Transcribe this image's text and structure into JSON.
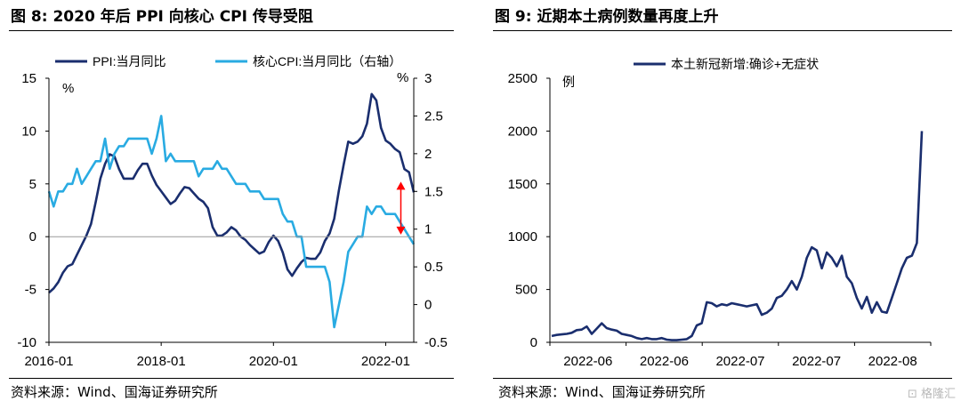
{
  "figures": [
    {
      "title": "图 8:  2020 年后 PPI 向核心 CPI 传导受阻",
      "source": "资料来源：Wind、国海证券研究所"
    },
    {
      "title": "图 9:  近期本土病例数量再度上升",
      "source": "资料来源：Wind、国海证券研究所"
    }
  ],
  "watermark": "格隆汇",
  "chart_data": [
    {
      "type": "line",
      "title": "",
      "y_unit_left": "%",
      "y_unit_right": "%",
      "ylim_left": [
        -10,
        15
      ],
      "ylim_right": [
        -0.5,
        3
      ],
      "yticks_left": [
        "15",
        "10",
        "5",
        "0",
        "-5",
        "-10"
      ],
      "yticks_right": [
        "3",
        "2.5",
        "2",
        "1.5",
        "1",
        "0.5",
        "0",
        "-0.5"
      ],
      "x_start": "2016-01",
      "x_end": "2022-06",
      "xticks": [
        "2016-01",
        "2018-01",
        "2020-01",
        "2022-01"
      ],
      "legend_position": "top",
      "series": [
        {
          "name": "PPI:当月同比",
          "axis": "left",
          "color": "#1a2e6e",
          "values": [
            -5.3,
            -4.9,
            -4.3,
            -3.4,
            -2.8,
            -2.6,
            -1.7,
            -0.8,
            0.1,
            1.2,
            3.3,
            5.5,
            6.9,
            7.8,
            7.6,
            6.4,
            5.5,
            5.5,
            5.5,
            6.3,
            6.9,
            6.9,
            5.8,
            4.9,
            4.3,
            3.7,
            3.1,
            3.4,
            4.1,
            4.7,
            4.6,
            4.1,
            3.6,
            3.3,
            2.7,
            0.9,
            0.1,
            0.1,
            0.4,
            0.9,
            0.6,
            0.0,
            -0.3,
            -0.8,
            -1.2,
            -1.6,
            -1.4,
            -0.5,
            0.1,
            -0.4,
            -1.5,
            -3.1,
            -3.7,
            -3.0,
            -2.4,
            -2.0,
            -2.1,
            -2.1,
            -1.5,
            -0.4,
            0.3,
            1.7,
            4.4,
            6.8,
            9.0,
            8.8,
            9.0,
            9.5,
            10.7,
            13.5,
            12.9,
            10.3,
            9.1,
            8.8,
            8.3,
            8.0,
            6.4,
            6.1,
            4.2
          ]
        },
        {
          "name": "核心CPI:当月同比（右轴）",
          "axis": "right",
          "color": "#29abe2",
          "values": [
            1.5,
            1.3,
            1.5,
            1.5,
            1.6,
            1.6,
            1.8,
            1.6,
            1.7,
            1.8,
            1.9,
            1.9,
            2.2,
            1.8,
            2.0,
            2.1,
            2.1,
            2.2,
            2.2,
            2.2,
            2.2,
            2.2,
            2.0,
            2.2,
            2.5,
            1.9,
            2.0,
            1.9,
            1.9,
            1.9,
            1.9,
            1.9,
            1.7,
            1.8,
            1.8,
            1.8,
            1.9,
            1.8,
            1.8,
            1.7,
            1.6,
            1.6,
            1.6,
            1.5,
            1.5,
            1.5,
            1.4,
            1.4,
            1.4,
            1.4,
            1.2,
            1.1,
            1.1,
            0.9,
            0.9,
            0.5,
            0.5,
            0.5,
            0.5,
            0.5,
            0.3,
            -0.3,
            0.0,
            0.3,
            0.7,
            0.8,
            0.9,
            0.9,
            1.3,
            1.2,
            1.3,
            1.3,
            1.2,
            1.2,
            1.2,
            1.1,
            1.0,
            0.9,
            0.8
          ]
        }
      ],
      "annotations": [
        {
          "type": "double-arrow",
          "color": "#ff0000",
          "x": "2022-05",
          "y_from": 5.2,
          "y_to": 0.2
        }
      ]
    },
    {
      "type": "line",
      "title": "",
      "y_unit": "例",
      "ylim": [
        0,
        2500
      ],
      "yticks": [
        "2500",
        "2000",
        "1500",
        "1000",
        "500",
        "0"
      ],
      "xticks": [
        "2022-06",
        "2022-06",
        "2022-07",
        "2022-07",
        "2022-08"
      ],
      "legend_position": "top",
      "series": [
        {
          "name": "本土新冠新增:确诊+无症状",
          "color": "#1a2e6e",
          "values": [
            60,
            70,
            75,
            80,
            90,
            115,
            120,
            150,
            80,
            130,
            180,
            135,
            120,
            110,
            80,
            70,
            60,
            40,
            30,
            40,
            30,
            30,
            40,
            25,
            20,
            20,
            25,
            30,
            60,
            160,
            180,
            380,
            370,
            340,
            360,
            350,
            370,
            360,
            350,
            340,
            350,
            360,
            260,
            280,
            320,
            420,
            440,
            500,
            580,
            500,
            620,
            800,
            900,
            870,
            700,
            850,
            800,
            720,
            820,
            620,
            560,
            420,
            320,
            430,
            280,
            380,
            290,
            280,
            420,
            560,
            700,
            800,
            820,
            940,
            2000
          ]
        }
      ]
    }
  ]
}
